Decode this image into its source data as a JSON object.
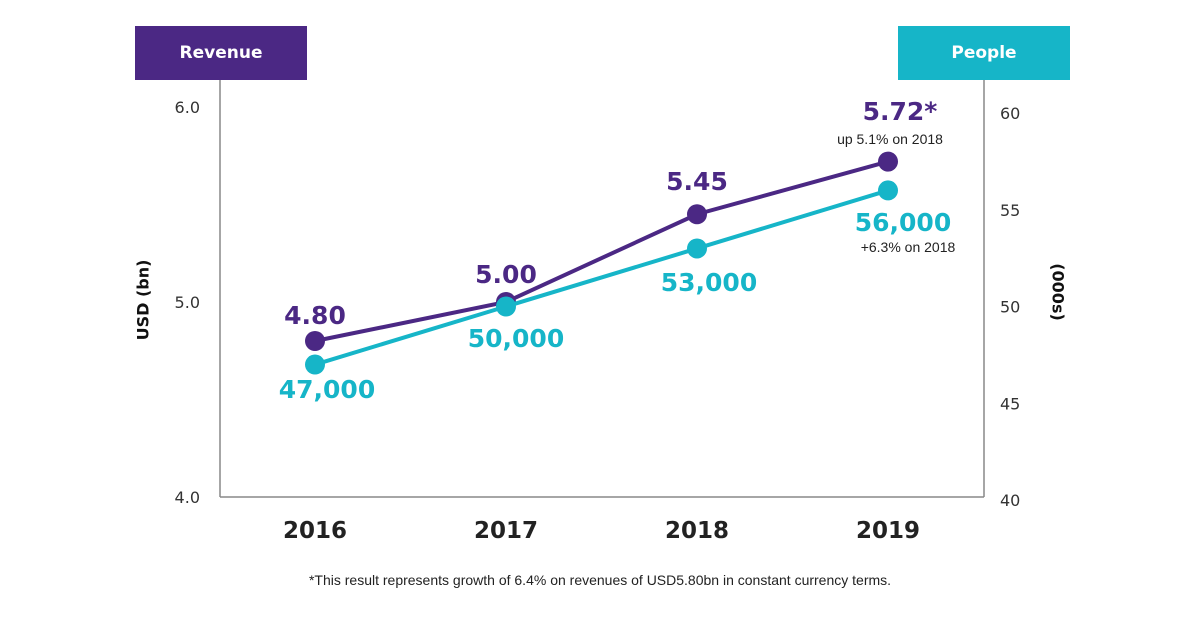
{
  "chart_data": {
    "type": "line",
    "categories": [
      "2016",
      "2017",
      "2018",
      "2019"
    ],
    "series": [
      {
        "name": "Revenue",
        "axis": "left",
        "color": "#4B2884",
        "values": [
          4.8,
          5.0,
          5.45,
          5.72
        ],
        "labels": [
          "4.80",
          "5.00",
          "5.45",
          "5.72*"
        ],
        "label_positions": [
          "above",
          "above",
          "above",
          "above"
        ]
      },
      {
        "name": "People",
        "axis": "right",
        "color": "#16B5C8",
        "values": [
          47000,
          50000,
          53000,
          56000
        ],
        "labels": [
          "47,000",
          "50,000",
          "53,000",
          "56,000"
        ],
        "label_positions": [
          "below",
          "below",
          "below",
          "below"
        ]
      }
    ],
    "annotations": [
      {
        "series": "Revenue",
        "category": "2019",
        "text": "up 5.1% on 2018"
      },
      {
        "series": "People",
        "category": "2019",
        "text": "+6.3% on 2018"
      }
    ],
    "left_axis": {
      "label": "USD (bn)",
      "ylim": [
        4.0,
        6.0
      ],
      "ticks": [
        "4.0",
        "5.0",
        "6.0"
      ],
      "tick_values": [
        4.0,
        5.0,
        6.0
      ]
    },
    "right_axis": {
      "label": "(000s)",
      "ylim": [
        40,
        60
      ],
      "ticks": [
        "40",
        "45",
        "50",
        "55",
        "60"
      ],
      "tick_values": [
        40,
        45,
        50,
        55,
        60
      ]
    },
    "grid": false,
    "legend": {
      "left_tag": "Revenue",
      "right_tag": "People"
    },
    "footnote": "*This result represents growth of 6.4% on revenues of USD5.80bn in constant currency terms."
  },
  "colors": {
    "revenue": "#4B2884",
    "people": "#16B5C8",
    "axis": "#888888",
    "text": "#222222"
  }
}
